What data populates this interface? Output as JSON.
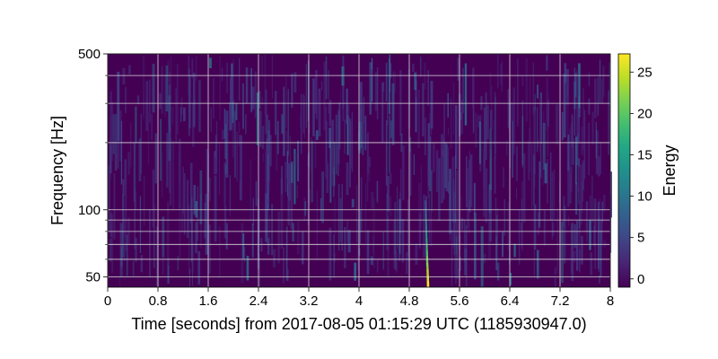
{
  "chart_data": {
    "type": "heatmap",
    "title": "",
    "xlabel": "Time [seconds] from 2017-08-05 01:15:29 UTC (1185930947.0)",
    "ylabel": "Frequency [Hz]",
    "xlim": [
      0,
      8
    ],
    "ylim": [
      45,
      500
    ],
    "yscale": "log",
    "x_ticks": [
      0,
      0.8,
      1.6,
      2.4,
      3.2,
      4,
      4.8,
      5.6,
      6.4,
      7.2,
      8
    ],
    "x_tick_labels": [
      "0",
      "0.8",
      "1.6",
      "2.4",
      "3.2",
      "4",
      "4.8",
      "5.6",
      "6.4",
      "7.2",
      "8"
    ],
    "y_ticks_major": [
      50,
      100,
      500
    ],
    "y_tick_labels": [
      "50",
      "100",
      "500"
    ],
    "y_ticks_minor": [
      60,
      70,
      80,
      90,
      200,
      300,
      400
    ],
    "grid": true,
    "colormap": "viridis",
    "colorbar": {
      "label": "Energy",
      "range": [
        -1,
        27.2
      ],
      "ticks": [
        0,
        5,
        10,
        15,
        20,
        25
      ],
      "tick_labels": [
        "0",
        "5",
        "10",
        "15",
        "20",
        "25"
      ]
    },
    "background_color": "#440154",
    "features": [
      {
        "name": "",
        "time": 5.1,
        "freq_low": 45,
        "freq_high": 110,
        "energy": 27
      }
    ]
  }
}
